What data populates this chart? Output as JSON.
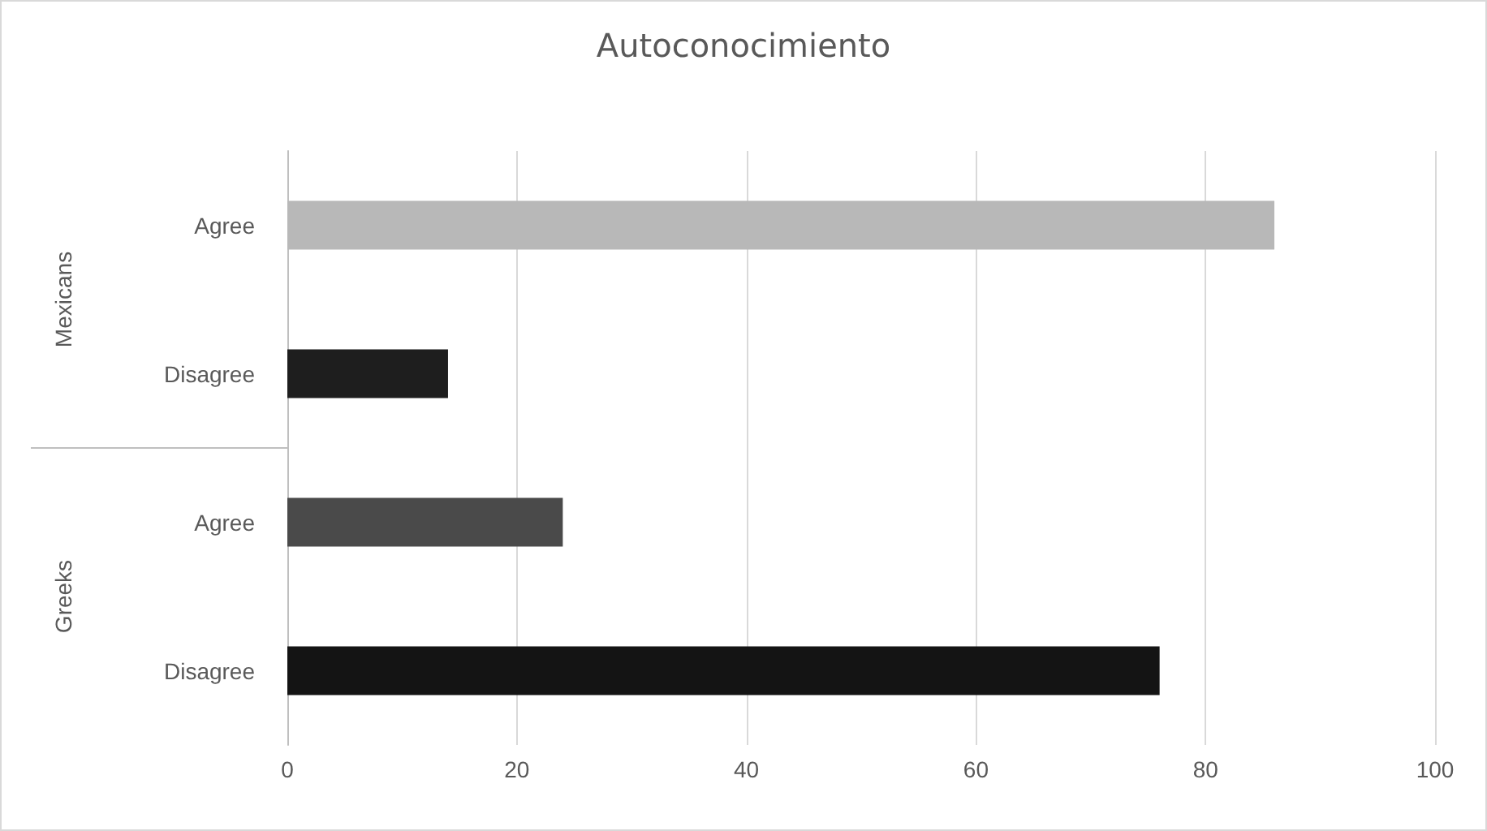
{
  "chart_data": {
    "type": "bar",
    "orientation": "horizontal",
    "title": "Autoconocimiento",
    "categories": [
      "Agree",
      "Disagree",
      "Agree",
      "Disagree"
    ],
    "values": [
      86,
      14,
      24,
      76
    ],
    "colors": [
      "#b8b8b8",
      "#1e1e1e",
      "#4a4a4a",
      "#141414"
    ],
    "annotations": [
      "Mexicans",
      "Greeks"
    ],
    "xlim": [
      0,
      100
    ],
    "xticks": [
      0,
      20,
      40,
      60,
      80,
      100
    ],
    "grid": "x"
  }
}
